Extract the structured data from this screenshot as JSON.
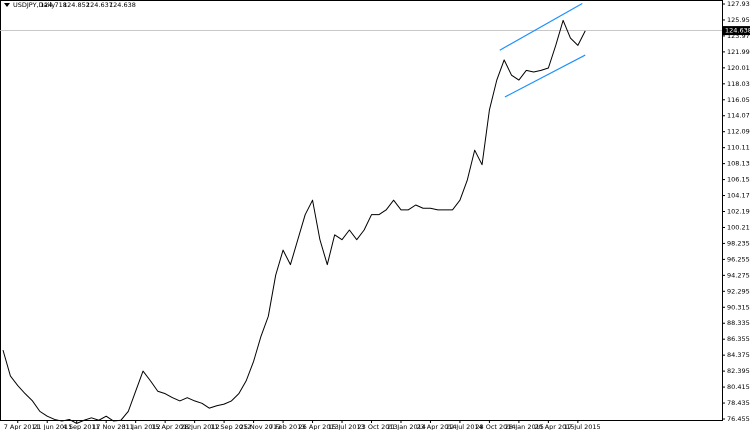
{
  "chart_data": {
    "type": "line",
    "symbol": "USDJPY,Daily",
    "ohlc": [
      124.718,
      124.852,
      124.637,
      124.638
    ],
    "categories": [
      null,
      null,
      "7 Apr 2011",
      null,
      null,
      null,
      "21 Jun 2011",
      null,
      null,
      null,
      "4 Sep 2011",
      null,
      null,
      null,
      "17 Nov 2011",
      null,
      null,
      null,
      "31 Jan 2012",
      null,
      null,
      null,
      "15 Apr 2012",
      null,
      null,
      null,
      "28 Jun 2012",
      null,
      null,
      null,
      "11 Sep 2012",
      null,
      null,
      null,
      "25 Nov 2012",
      null,
      null,
      null,
      "7 Feb 2013",
      null,
      null,
      null,
      "26 Apr 2013",
      null,
      null,
      null,
      "15 Jul 2013",
      null,
      null,
      null,
      "23 Oct 2013",
      null,
      null,
      null,
      "21 Jan 2014",
      null,
      null,
      null,
      "23 Apr 2014",
      null,
      null,
      null,
      "22 Jul 2014",
      null,
      null,
      null,
      "28 Oct 2014",
      null,
      null,
      null,
      "28 Jan 2015",
      null,
      null,
      null,
      "20 Apr 2015",
      null,
      null,
      null,
      "17 Jul 2015",
      null
    ],
    "values": [
      85.0,
      81.8,
      80.6,
      79.6,
      78.7,
      77.4,
      76.8,
      76.4,
      76.2,
      76.4,
      75.9,
      76.3,
      76.6,
      76.3,
      76.8,
      76.2,
      76.3,
      77.4,
      79.9,
      82.4,
      81.2,
      79.9,
      79.6,
      79.1,
      78.7,
      79.1,
      78.7,
      78.4,
      77.8,
      78.1,
      78.3,
      78.7,
      79.6,
      81.2,
      83.6,
      86.7,
      89.2,
      94.3,
      97.4,
      95.6,
      98.7,
      101.8,
      103.6,
      98.7,
      95.6,
      99.3,
      98.7,
      99.9,
      98.7,
      99.9,
      101.8,
      101.8,
      102.4,
      103.6,
      102.4,
      102.4,
      103.0,
      102.6,
      102.6,
      102.4,
      102.4,
      102.4,
      103.6,
      106.1,
      109.8,
      108.0,
      114.8,
      118.5,
      121.0,
      119.1,
      118.5,
      119.7,
      119.5,
      119.7,
      120.0,
      122.8,
      125.9,
      123.7,
      122.8,
      124.6
    ],
    "color": "#000000",
    "ylim": [
      76.455,
      127.935
    ],
    "yticks": [
      76.455,
      78.435,
      80.415,
      82.395,
      84.375,
      86.355,
      88.335,
      90.315,
      92.295,
      94.275,
      96.255,
      98.235,
      100.215,
      102.195,
      104.175,
      106.155,
      108.135,
      110.115,
      112.095,
      114.075,
      116.055,
      118.035,
      120.015,
      121.995,
      123.975,
      125.955,
      127.935
    ],
    "current_price": 124.638,
    "trendlines": [
      {
        "color": "#1e90ff",
        "start": [
          67.4,
          122.2
        ],
        "end": [
          78.6,
          128.0
        ]
      },
      {
        "color": "#1e90ff",
        "start": [
          68.1,
          116.4
        ],
        "end": [
          79,
          121.6
        ]
      }
    ]
  }
}
